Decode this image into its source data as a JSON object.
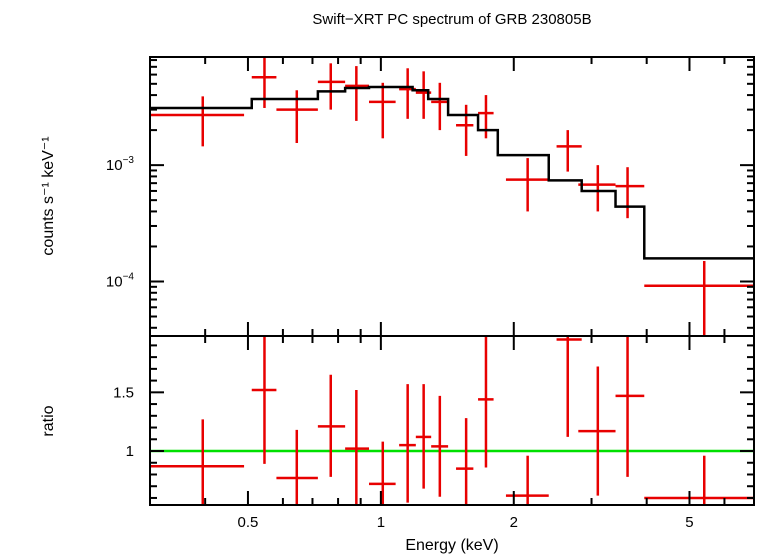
{
  "chart_data": [
    {
      "type": "line",
      "title": "Swift−XRT PC spectrum of GRB 230805B",
      "ylabel": "counts s⁻¹ keV⁻¹",
      "xscale": "log",
      "yscale": "log",
      "xlim": [
        0.3,
        7.0
      ],
      "ylim": [
        3.4e-05,
        0.0085
      ],
      "yticklabels": [
        {
          "value": 0.001,
          "base": "10",
          "exp": "−3"
        },
        {
          "value": 0.0001,
          "base": "10",
          "exp": "−4"
        }
      ],
      "data_points": [
        {
          "x": 0.395,
          "xlo": 0.3,
          "xhi": 0.49,
          "y": 0.0027,
          "ylo": 0.00145,
          "yhi": 0.0039
        },
        {
          "x": 0.545,
          "xlo": 0.51,
          "xhi": 0.58,
          "y": 0.0057,
          "ylo": 0.0031,
          "yhi": 0.009
        },
        {
          "x": 0.645,
          "xlo": 0.58,
          "xhi": 0.72,
          "y": 0.003,
          "ylo": 0.00155,
          "yhi": 0.0044
        },
        {
          "x": 0.77,
          "xlo": 0.72,
          "xhi": 0.83,
          "y": 0.0052,
          "ylo": 0.003,
          "yhi": 0.0075
        },
        {
          "x": 0.88,
          "xlo": 0.83,
          "xhi": 0.94,
          "y": 0.0048,
          "ylo": 0.0024,
          "yhi": 0.0071
        },
        {
          "x": 1.01,
          "xlo": 0.94,
          "xhi": 1.08,
          "y": 0.0035,
          "ylo": 0.0017,
          "yhi": 0.0051
        },
        {
          "x": 1.15,
          "xlo": 1.1,
          "xhi": 1.2,
          "y": 0.0045,
          "ylo": 0.0025,
          "yhi": 0.0068
        },
        {
          "x": 1.25,
          "xlo": 1.2,
          "xhi": 1.3,
          "y": 0.0042,
          "ylo": 0.0025,
          "yhi": 0.0064
        },
        {
          "x": 1.36,
          "xlo": 1.3,
          "xhi": 1.42,
          "y": 0.0035,
          "ylo": 0.002,
          "yhi": 0.0051
        },
        {
          "x": 1.56,
          "xlo": 1.48,
          "xhi": 1.62,
          "y": 0.0022,
          "ylo": 0.0012,
          "yhi": 0.0033
        },
        {
          "x": 1.73,
          "xlo": 1.66,
          "xhi": 1.8,
          "y": 0.0028,
          "ylo": 0.0017,
          "yhi": 0.004
        },
        {
          "x": 2.15,
          "xlo": 1.92,
          "xhi": 2.4,
          "y": 0.00075,
          "ylo": 0.0004,
          "yhi": 0.00115
        },
        {
          "x": 2.65,
          "xlo": 2.5,
          "xhi": 2.85,
          "y": 0.00145,
          "ylo": 0.00088,
          "yhi": 0.002
        },
        {
          "x": 3.1,
          "xlo": 2.8,
          "xhi": 3.4,
          "y": 0.00068,
          "ylo": 0.0004,
          "yhi": 0.001
        },
        {
          "x": 3.62,
          "xlo": 3.4,
          "xhi": 3.95,
          "y": 0.00066,
          "ylo": 0.00035,
          "yhi": 0.00096
        },
        {
          "x": 5.4,
          "xlo": 3.95,
          "xhi": 7.0,
          "y": 9.2e-05,
          "ylo": 3.4e-05,
          "yhi": 0.00015
        }
      ],
      "model_steps": [
        {
          "xlo": 0.3,
          "xhi": 0.51,
          "y": 0.0031
        },
        {
          "xlo": 0.51,
          "xhi": 0.72,
          "y": 0.0037
        },
        {
          "xlo": 0.72,
          "xhi": 0.83,
          "y": 0.0043
        },
        {
          "xlo": 0.83,
          "xhi": 0.94,
          "y": 0.0046
        },
        {
          "xlo": 0.94,
          "xhi": 1.18,
          "y": 0.0047
        },
        {
          "xlo": 1.18,
          "xhi": 1.28,
          "y": 0.0044
        },
        {
          "xlo": 1.28,
          "xhi": 1.42,
          "y": 0.0037
        },
        {
          "xlo": 1.42,
          "xhi": 1.66,
          "y": 0.0027
        },
        {
          "xlo": 1.66,
          "xhi": 1.84,
          "y": 0.002
        },
        {
          "xlo": 1.84,
          "xhi": 2.4,
          "y": 0.00122
        },
        {
          "xlo": 2.4,
          "xhi": 2.85,
          "y": 0.00074
        },
        {
          "xlo": 2.85,
          "xhi": 3.4,
          "y": 0.0006
        },
        {
          "xlo": 3.4,
          "xhi": 3.95,
          "y": 0.00044
        },
        {
          "xlo": 3.95,
          "xhi": 7.0,
          "y": 0.000158
        }
      ],
      "colors": {
        "data": "#e80000",
        "model": "#000000"
      }
    },
    {
      "type": "line",
      "xlabel": "Energy (keV)",
      "ylabel": "ratio",
      "xscale": "log",
      "xlim": [
        0.3,
        7.0
      ],
      "ylim": [
        0.54,
        1.98
      ],
      "xticklabels": [
        {
          "value": 0.5,
          "label": "0.5"
        },
        {
          "value": 1,
          "label": "1"
        },
        {
          "value": 2,
          "label": "2"
        },
        {
          "value": 5,
          "label": "5"
        }
      ],
      "yticklabels": [
        {
          "value": 1,
          "label": "1"
        },
        {
          "value": 1.5,
          "label": "1.5"
        }
      ],
      "data_points": [
        {
          "x": 0.395,
          "xlo": 0.3,
          "xhi": 0.49,
          "y": 0.87,
          "ylo": 0.53,
          "yhi": 1.27
        },
        {
          "x": 0.545,
          "xlo": 0.51,
          "xhi": 0.58,
          "y": 1.52,
          "ylo": 0.89,
          "yhi": 2.05
        },
        {
          "x": 0.645,
          "xlo": 0.58,
          "xhi": 0.72,
          "y": 0.77,
          "ylo": 0.53,
          "yhi": 1.18
        },
        {
          "x": 0.77,
          "xlo": 0.72,
          "xhi": 0.83,
          "y": 1.21,
          "ylo": 0.78,
          "yhi": 1.65
        },
        {
          "x": 0.88,
          "xlo": 0.83,
          "xhi": 0.94,
          "y": 1.02,
          "ylo": 0.53,
          "yhi": 1.52
        },
        {
          "x": 1.01,
          "xlo": 0.94,
          "xhi": 1.08,
          "y": 0.72,
          "ylo": 0.53,
          "yhi": 1.08
        },
        {
          "x": 1.15,
          "xlo": 1.1,
          "xhi": 1.2,
          "y": 1.05,
          "ylo": 0.56,
          "yhi": 1.57
        },
        {
          "x": 1.25,
          "xlo": 1.2,
          "xhi": 1.3,
          "y": 1.12,
          "ylo": 0.68,
          "yhi": 1.57
        },
        {
          "x": 1.36,
          "xlo": 1.3,
          "xhi": 1.42,
          "y": 1.04,
          "ylo": 0.61,
          "yhi": 1.47
        },
        {
          "x": 1.56,
          "xlo": 1.48,
          "xhi": 1.62,
          "y": 0.85,
          "ylo": 0.53,
          "yhi": 1.28
        },
        {
          "x": 1.73,
          "xlo": 1.66,
          "xhi": 1.8,
          "y": 1.44,
          "ylo": 0.86,
          "yhi": 2.02
        },
        {
          "x": 2.15,
          "xlo": 1.92,
          "xhi": 2.4,
          "y": 0.62,
          "ylo": 0.53,
          "yhi": 0.96
        },
        {
          "x": 2.65,
          "xlo": 2.5,
          "xhi": 2.85,
          "y": 1.95,
          "ylo": 1.12,
          "yhi": 2.05
        },
        {
          "x": 3.1,
          "xlo": 2.8,
          "xhi": 3.4,
          "y": 1.17,
          "ylo": 0.62,
          "yhi": 1.72
        },
        {
          "x": 3.62,
          "xlo": 3.4,
          "xhi": 3.95,
          "y": 1.47,
          "ylo": 0.78,
          "yhi": 2.05
        },
        {
          "x": 5.4,
          "xlo": 3.95,
          "xhi": 7.0,
          "y": 0.6,
          "ylo": 0.53,
          "yhi": 0.96
        }
      ],
      "reference_line": {
        "y": 1
      },
      "colors": {
        "data": "#e80000",
        "reference": "#00e000"
      }
    }
  ]
}
